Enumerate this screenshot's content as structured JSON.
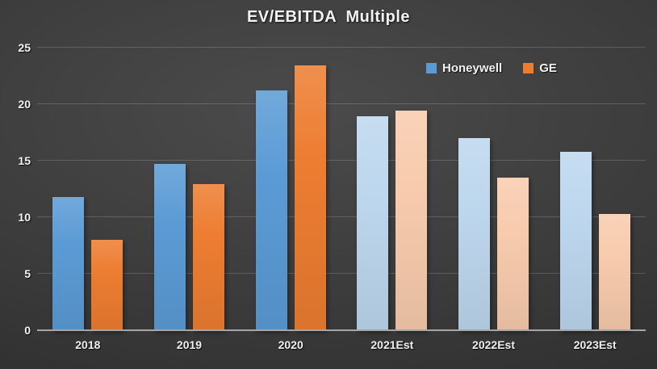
{
  "chart_data": {
    "type": "bar",
    "title": "EV/EBITDA Multiple",
    "categories": [
      "2018",
      "2019",
      "2020",
      "2021Est",
      "2022Est",
      "2023Est"
    ],
    "series": [
      {
        "name": "Honeywell",
        "values": [
          11.8,
          14.7,
          21.2,
          18.9,
          17.0,
          15.8
        ],
        "legend_color": "#5B9BD5",
        "bar_colors": [
          "#5B9BD5",
          "#5B9BD5",
          "#5B9BD5",
          "#BDD7EE",
          "#BDD7EE",
          "#BDD7EE"
        ]
      },
      {
        "name": "GE",
        "values": [
          8.0,
          12.9,
          23.4,
          19.4,
          13.5,
          10.3
        ],
        "legend_color": "#ED7D31",
        "bar_colors": [
          "#ED7D31",
          "#ED7D31",
          "#ED7D31",
          "#F8CBAD",
          "#F8CBAD",
          "#F8CBAD"
        ]
      }
    ],
    "xlabel": "",
    "ylabel": "",
    "y_ticks": [
      0,
      5,
      10,
      15,
      20,
      25
    ],
    "ylim": [
      0,
      25
    ],
    "grid": true,
    "legend_position": "top-right"
  },
  "colors": {
    "background_center": "#4b4b4b",
    "background_edge": "#2a2a2a",
    "text": "#F2F2F2",
    "gridline": "rgba(255,255,255,0.17)",
    "axis_line": "#A6A6A6"
  }
}
